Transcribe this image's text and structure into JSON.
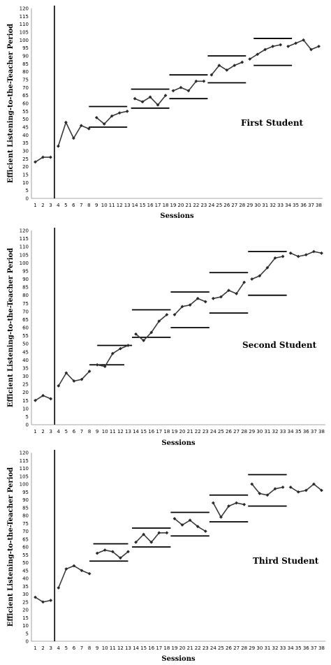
{
  "chart_data": [
    {
      "type": "line",
      "student_label": "First Student",
      "ylabel": "Efficient Listening-to-the-Teacher Period",
      "xlabel": "Sessions",
      "ylim": [
        0,
        120
      ],
      "ytick_step": 5,
      "x_categories": [
        1,
        2,
        3,
        4,
        5,
        6,
        7,
        8,
        9,
        10,
        11,
        12,
        13,
        14,
        15,
        16,
        17,
        18,
        19,
        20,
        21,
        22,
        23,
        24,
        25,
        26,
        27,
        28,
        29,
        30,
        31,
        32,
        33,
        34,
        35,
        36,
        37,
        38
      ],
      "phase_change_after": 3.5,
      "segments": [
        {
          "x": [
            1,
            2,
            3
          ],
          "y": [
            23,
            26,
            26
          ]
        },
        {
          "x": [
            4,
            5,
            6,
            7,
            8
          ],
          "y": [
            33,
            48,
            38,
            46,
            44
          ]
        },
        {
          "x": [
            9,
            10,
            11,
            12,
            13
          ],
          "y": [
            51,
            47,
            52,
            54,
            55
          ]
        },
        {
          "x": [
            14,
            15,
            16,
            17,
            18
          ],
          "y": [
            63,
            61,
            64,
            59,
            65
          ]
        },
        {
          "x": [
            19,
            20,
            21,
            22,
            23
          ],
          "y": [
            68,
            70,
            68,
            74,
            74
          ]
        },
        {
          "x": [
            24,
            25,
            26,
            27,
            28
          ],
          "y": [
            78,
            84,
            81,
            84,
            86
          ]
        },
        {
          "x": [
            29,
            30,
            31,
            32,
            33
          ],
          "y": [
            88,
            91,
            94,
            96,
            97
          ]
        },
        {
          "x": [
            34,
            35,
            36,
            37,
            38
          ],
          "y": [
            96,
            98,
            100,
            94,
            96
          ]
        }
      ],
      "criterion_lines": [
        {
          "x0": 8,
          "x1": 13,
          "y": 58
        },
        {
          "x0": 8,
          "x1": 13,
          "y": 45
        },
        {
          "x0": 13.5,
          "x1": 18.5,
          "y": 69
        },
        {
          "x0": 13.5,
          "x1": 18.5,
          "y": 57
        },
        {
          "x0": 18.5,
          "x1": 23.5,
          "y": 78
        },
        {
          "x0": 18.5,
          "x1": 23.5,
          "y": 63
        },
        {
          "x0": 23.5,
          "x1": 28.5,
          "y": 90
        },
        {
          "x0": 23.5,
          "x1": 28.5,
          "y": 73
        },
        {
          "x0": 29.5,
          "x1": 34.5,
          "y": 101
        },
        {
          "x0": 29.5,
          "x1": 34.5,
          "y": 84
        }
      ]
    },
    {
      "type": "line",
      "student_label": "Second Student",
      "ylabel": "Efficient Listening-to-the-Teacher Period",
      "xlabel": "Sessions",
      "ylim": [
        0,
        120
      ],
      "ytick_step": 5,
      "x_categories": [
        1,
        2,
        3,
        4,
        5,
        6,
        7,
        8,
        9,
        10,
        11,
        12,
        13,
        14,
        15,
        16,
        17,
        18,
        19,
        20,
        21,
        22,
        23,
        24,
        25,
        26,
        27,
        28,
        29,
        30,
        31,
        32,
        33,
        34,
        35,
        36,
        37,
        38
      ],
      "phase_change_after": 3.5,
      "segments": [
        {
          "x": [
            1,
            2,
            3
          ],
          "y": [
            15,
            18,
            16
          ]
        },
        {
          "x": [
            4,
            5,
            6,
            7,
            8
          ],
          "y": [
            24,
            32,
            27,
            28,
            33
          ]
        },
        {
          "x": [
            9,
            10,
            11,
            12,
            13
          ],
          "y": [
            37,
            36,
            44,
            47,
            49
          ]
        },
        {
          "x": [
            14,
            15,
            16,
            17,
            18
          ],
          "y": [
            56,
            52,
            57,
            64,
            68
          ]
        },
        {
          "x": [
            19,
            20,
            21,
            22,
            23
          ],
          "y": [
            68,
            73,
            74,
            78,
            76
          ]
        },
        {
          "x": [
            24,
            25,
            26,
            27,
            28
          ],
          "y": [
            78,
            79,
            83,
            81,
            88
          ]
        },
        {
          "x": [
            29,
            30,
            31,
            32,
            33
          ],
          "y": [
            90,
            92,
            97,
            103,
            104
          ]
        },
        {
          "x": [
            34,
            35,
            36,
            37,
            38
          ],
          "y": [
            106,
            104,
            105,
            107,
            106
          ]
        }
      ],
      "criterion_lines": [
        {
          "x0": 8,
          "x1": 12.5,
          "y": 37
        },
        {
          "x0": 9,
          "x1": 13.5,
          "y": 49
        },
        {
          "x0": 13.5,
          "x1": 18.5,
          "y": 71
        },
        {
          "x0": 13.5,
          "x1": 18.5,
          "y": 54
        },
        {
          "x0": 18.5,
          "x1": 23.5,
          "y": 82
        },
        {
          "x0": 18.5,
          "x1": 23.5,
          "y": 60
        },
        {
          "x0": 23.5,
          "x1": 28.5,
          "y": 94
        },
        {
          "x0": 23.5,
          "x1": 28.5,
          "y": 69
        },
        {
          "x0": 28.5,
          "x1": 33.5,
          "y": 107
        },
        {
          "x0": 28.5,
          "x1": 33.5,
          "y": 80
        }
      ]
    },
    {
      "type": "line",
      "student_label": "Third Student",
      "ylabel": "Efficient Listening-to-the-Teacher Period",
      "xlabel": "Sessions",
      "ylim": [
        0,
        120
      ],
      "ytick_step": 5,
      "x_categories": [
        1,
        2,
        3,
        4,
        5,
        6,
        7,
        8,
        9,
        10,
        11,
        12,
        13,
        14,
        15,
        16,
        17,
        18,
        19,
        20,
        21,
        22,
        23,
        24,
        25,
        26,
        27,
        28,
        29,
        30,
        31,
        32,
        33,
        34,
        35,
        36,
        37,
        38
      ],
      "phase_change_after": 3.5,
      "segments": [
        {
          "x": [
            1,
            2,
            3
          ],
          "y": [
            28,
            25,
            26
          ]
        },
        {
          "x": [
            4,
            5,
            6,
            7,
            8
          ],
          "y": [
            34,
            46,
            48,
            45,
            43
          ]
        },
        {
          "x": [
            9,
            10,
            11,
            12,
            13
          ],
          "y": [
            56,
            58,
            57,
            53,
            57
          ]
        },
        {
          "x": [
            14,
            15,
            16,
            17,
            18
          ],
          "y": [
            63,
            68,
            63,
            69,
            69
          ]
        },
        {
          "x": [
            19,
            20,
            21,
            22,
            23
          ],
          "y": [
            78,
            74,
            77,
            73,
            70
          ]
        },
        {
          "x": [
            24,
            25,
            26,
            27,
            28
          ],
          "y": [
            88,
            79,
            86,
            88,
            87
          ]
        },
        {
          "x": [
            29,
            30,
            31,
            32,
            33
          ],
          "y": [
            100,
            94,
            93,
            97,
            98
          ]
        },
        {
          "x": [
            34,
            35,
            36,
            37,
            38
          ],
          "y": [
            98,
            95,
            96,
            100,
            96
          ]
        }
      ],
      "criterion_lines": [
        {
          "x0": 8.5,
          "x1": 13,
          "y": 62
        },
        {
          "x0": 8,
          "x1": 13,
          "y": 51
        },
        {
          "x0": 13.5,
          "x1": 18.5,
          "y": 72
        },
        {
          "x0": 13.5,
          "x1": 18.5,
          "y": 60
        },
        {
          "x0": 18.5,
          "x1": 23.5,
          "y": 82
        },
        {
          "x0": 18.5,
          "x1": 23.5,
          "y": 67
        },
        {
          "x0": 23.5,
          "x1": 28.5,
          "y": 93
        },
        {
          "x0": 23.5,
          "x1": 28.5,
          "y": 76
        },
        {
          "x0": 28.5,
          "x1": 33.5,
          "y": 106
        },
        {
          "x0": 28.5,
          "x1": 33.5,
          "y": 86
        }
      ]
    }
  ]
}
